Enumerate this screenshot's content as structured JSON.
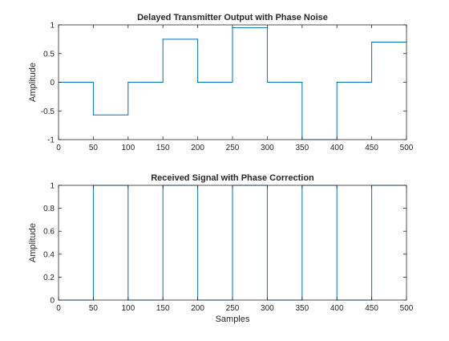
{
  "colors": {
    "line": "#0072BD",
    "axes": "#262626",
    "background": "#ffffff"
  },
  "chart_data": [
    {
      "type": "line",
      "title": "Delayed Transmitter Output with Phase Noise",
      "xlabel": "",
      "ylabel": "Amplitude",
      "xlim": [
        0,
        500
      ],
      "ylim": [
        -1,
        1
      ],
      "xticks": [
        0,
        50,
        100,
        150,
        200,
        250,
        300,
        350,
        400,
        450,
        500
      ],
      "yticks": [
        -1,
        -0.5,
        0,
        0.5,
        1
      ],
      "xtick_labels": [
        "0",
        "50",
        "100",
        "150",
        "200",
        "250",
        "300",
        "350",
        "400",
        "450",
        "500"
      ],
      "ytick_labels": [
        "-1",
        "-0.5",
        "0",
        "0.5",
        "1"
      ],
      "grid": false,
      "series": [
        {
          "style": "step",
          "x": [
            0,
            50,
            100,
            150,
            200,
            250,
            300,
            350,
            400,
            450,
            500
          ],
          "y": [
            0,
            -0.57,
            0,
            0.75,
            0,
            0.95,
            0,
            -1,
            0,
            0.7,
            0.7
          ]
        }
      ]
    },
    {
      "type": "line",
      "title": "Received Signal with Phase Correction",
      "xlabel": "Samples",
      "ylabel": "Amplitude",
      "xlim": [
        0,
        500
      ],
      "ylim": [
        0,
        1
      ],
      "xticks": [
        0,
        50,
        100,
        150,
        200,
        250,
        300,
        350,
        400,
        450,
        500
      ],
      "yticks": [
        0,
        0.2,
        0.4,
        0.6,
        0.8,
        1
      ],
      "xtick_labels": [
        "0",
        "50",
        "100",
        "150",
        "200",
        "250",
        "300",
        "350",
        "400",
        "450",
        "500"
      ],
      "ytick_labels": [
        "0",
        "0.2",
        "0.4",
        "0.6",
        "0.8",
        "1"
      ],
      "grid": false,
      "series": [
        {
          "style": "step",
          "x": [
            0,
            50,
            100,
            150,
            200,
            250,
            300,
            350,
            400,
            450,
            500
          ],
          "y": [
            0,
            1,
            0,
            1,
            0,
            1,
            0,
            1,
            0,
            1,
            1
          ]
        }
      ]
    }
  ]
}
